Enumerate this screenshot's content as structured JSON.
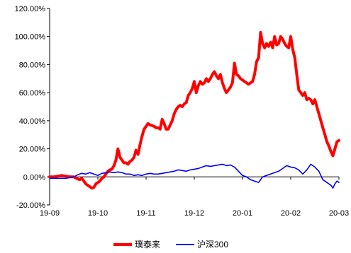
{
  "chart_data": {
    "type": "line",
    "title": "",
    "xlabel": "",
    "ylabel": "",
    "ylim": [
      -20,
      120
    ],
    "y_ticks": [
      -20,
      0,
      20,
      40,
      60,
      80,
      100,
      120
    ],
    "y_tick_labels": [
      "-20.00%",
      "0.00%",
      "20.00%",
      "40.00%",
      "60.00%",
      "80.00%",
      "100.00%",
      "120.00%"
    ],
    "x_ticks": [
      "19-09",
      "19-10",
      "19-11",
      "19-12",
      "20-01",
      "20-02",
      "20-03"
    ],
    "grid": false,
    "legend_position": "bottom",
    "series": [
      {
        "name": "璞泰来",
        "color": "#ff0000",
        "points": [
          [
            0,
            0.0
          ],
          [
            2,
            0.0
          ],
          [
            4,
            0.5
          ],
          [
            6,
            1.0
          ],
          [
            8,
            0.5
          ],
          [
            10,
            0.0
          ],
          [
            12,
            0.0
          ],
          [
            14,
            -1.5
          ],
          [
            15,
            -2.0
          ],
          [
            16,
            -1.0
          ],
          [
            17,
            -3.0
          ],
          [
            18,
            -5.0
          ],
          [
            19,
            -6.0
          ],
          [
            20,
            -7.0
          ],
          [
            21,
            -8.0
          ],
          [
            22,
            -7.5
          ],
          [
            23,
            -5.0
          ],
          [
            24,
            -4.0
          ],
          [
            25,
            -3.0
          ],
          [
            26,
            -1.0
          ],
          [
            27,
            0.0
          ],
          [
            28,
            2.0
          ],
          [
            29,
            4.0
          ],
          [
            30,
            5.0
          ],
          [
            31,
            5.5
          ],
          [
            32,
            8.0
          ],
          [
            33,
            12.0
          ],
          [
            34,
            20.0
          ],
          [
            35,
            14.0
          ],
          [
            36,
            12.0
          ],
          [
            37,
            10.0
          ],
          [
            38,
            10.0
          ],
          [
            39,
            9.0
          ],
          [
            40,
            11.0
          ],
          [
            41,
            12.0
          ],
          [
            42,
            14.0
          ],
          [
            43,
            19.0
          ],
          [
            44,
            16.0
          ],
          [
            45,
            23.0
          ],
          [
            46,
            29.0
          ],
          [
            47,
            34.0
          ],
          [
            48,
            36.0
          ],
          [
            49,
            38.0
          ],
          [
            50,
            37.0
          ],
          [
            51,
            36.5
          ],
          [
            52,
            36.0
          ],
          [
            53,
            35.0
          ],
          [
            54,
            35.0
          ],
          [
            55,
            34.0
          ],
          [
            56,
            41.0
          ],
          [
            57,
            38.0
          ],
          [
            58,
            34.0
          ],
          [
            59,
            34.0
          ],
          [
            60,
            37.0
          ],
          [
            61,
            40.0
          ],
          [
            62,
            45.0
          ],
          [
            63,
            48.0
          ],
          [
            64,
            50.0
          ],
          [
            65,
            51.0
          ],
          [
            66,
            50.0
          ],
          [
            67,
            52.0
          ],
          [
            68,
            53.0
          ],
          [
            69,
            58.0
          ],
          [
            70,
            60.0
          ],
          [
            71,
            63.0
          ],
          [
            72,
            68.0
          ],
          [
            73,
            60.0
          ],
          [
            74,
            65.0
          ],
          [
            75,
            68.0
          ],
          [
            76,
            66.0
          ],
          [
            77,
            67.0
          ],
          [
            78,
            70.0
          ],
          [
            79,
            68.0
          ],
          [
            80,
            70.0
          ],
          [
            81,
            73.0
          ],
          [
            82,
            75.0
          ],
          [
            83,
            72.0
          ],
          [
            84,
            70.0
          ],
          [
            85,
            73.0
          ],
          [
            86,
            67.0
          ],
          [
            87,
            63.0
          ],
          [
            88,
            60.0
          ],
          [
            89,
            62.0
          ],
          [
            90,
            64.0
          ],
          [
            91,
            67.0
          ],
          [
            92,
            81.0
          ],
          [
            93,
            73.0
          ],
          [
            94,
            72.0
          ],
          [
            95,
            70.0
          ],
          [
            96,
            69.0
          ],
          [
            97,
            68.0
          ],
          [
            98,
            67.0
          ],
          [
            99,
            66.0
          ],
          [
            100,
            67.0
          ],
          [
            101,
            68.0
          ],
          [
            102,
            73.0
          ],
          [
            103,
            82.0
          ],
          [
            104,
            85.0
          ],
          [
            105,
            103.0
          ],
          [
            106,
            95.0
          ],
          [
            107,
            92.0
          ],
          [
            108,
            95.0
          ],
          [
            109,
            93.0
          ],
          [
            110,
            96.0
          ],
          [
            111,
            92.0
          ],
          [
            112,
            100.0
          ],
          [
            113,
            94.0
          ],
          [
            114,
            95.0
          ],
          [
            115,
            100.0
          ],
          [
            116,
            98.0
          ],
          [
            117,
            95.0
          ],
          [
            118,
            93.0
          ],
          [
            119,
            92.0
          ],
          [
            120,
            100.0
          ],
          [
            121,
            91.0
          ],
          [
            122,
            85.0
          ],
          [
            123,
            73.0
          ],
          [
            124,
            62.0
          ],
          [
            125,
            60.0
          ],
          [
            126,
            58.0
          ],
          [
            127,
            60.0
          ],
          [
            128,
            55.0
          ],
          [
            129,
            56.0
          ],
          [
            130,
            55.0
          ],
          [
            131,
            52.0
          ],
          [
            132,
            55.0
          ],
          [
            133,
            50.0
          ],
          [
            134,
            45.0
          ],
          [
            135,
            40.0
          ],
          [
            136,
            35.0
          ],
          [
            137,
            30.0
          ],
          [
            138,
            25.0
          ],
          [
            139,
            22.0
          ],
          [
            140,
            18.0
          ],
          [
            141,
            15.0
          ],
          [
            142,
            20.0
          ],
          [
            143,
            25.0
          ],
          [
            144,
            26.0
          ]
        ]
      },
      {
        "name": "沪深300",
        "color": "#0000ff",
        "points": [
          [
            0,
            -1.0
          ],
          [
            4,
            -1.0
          ],
          [
            8,
            -1.0
          ],
          [
            12,
            0.0
          ],
          [
            14,
            1.5
          ],
          [
            16,
            2.5
          ],
          [
            18,
            2.0
          ],
          [
            20,
            3.0
          ],
          [
            22,
            2.0
          ],
          [
            24,
            1.0
          ],
          [
            26,
            2.5
          ],
          [
            28,
            3.0
          ],
          [
            30,
            3.5
          ],
          [
            32,
            3.0
          ],
          [
            34,
            3.5
          ],
          [
            36,
            3.0
          ],
          [
            38,
            2.0
          ],
          [
            40,
            2.0
          ],
          [
            42,
            1.0
          ],
          [
            44,
            1.5
          ],
          [
            46,
            1.0
          ],
          [
            48,
            2.0
          ],
          [
            50,
            2.5
          ],
          [
            52,
            2.0
          ],
          [
            54,
            2.0
          ],
          [
            56,
            2.5
          ],
          [
            58,
            3.0
          ],
          [
            60,
            3.5
          ],
          [
            62,
            4.0
          ],
          [
            64,
            5.0
          ],
          [
            66,
            4.5
          ],
          [
            68,
            4.0
          ],
          [
            70,
            5.0
          ],
          [
            72,
            5.5
          ],
          [
            74,
            6.0
          ],
          [
            76,
            7.0
          ],
          [
            78,
            8.0
          ],
          [
            80,
            7.5
          ],
          [
            82,
            8.0
          ],
          [
            84,
            8.5
          ],
          [
            86,
            9.0
          ],
          [
            88,
            8.0
          ],
          [
            90,
            8.5
          ],
          [
            92,
            7.0
          ],
          [
            94,
            4.0
          ],
          [
            96,
            1.0
          ],
          [
            98,
            0.0
          ],
          [
            100,
            -2.0
          ],
          [
            102,
            -3.0
          ],
          [
            104,
            -4.0
          ],
          [
            106,
            0.0
          ],
          [
            108,
            1.0
          ],
          [
            110,
            2.0
          ],
          [
            112,
            3.0
          ],
          [
            114,
            4.0
          ],
          [
            116,
            6.0
          ],
          [
            118,
            8.0
          ],
          [
            120,
            7.0
          ],
          [
            122,
            6.5
          ],
          [
            124,
            5.0
          ],
          [
            126,
            2.0
          ],
          [
            128,
            5.0
          ],
          [
            130,
            9.0
          ],
          [
            132,
            7.0
          ],
          [
            134,
            4.0
          ],
          [
            136,
            -2.0
          ],
          [
            138,
            -4.0
          ],
          [
            140,
            -6.0
          ],
          [
            141,
            -8.0
          ],
          [
            142,
            -5.0
          ],
          [
            143,
            -3.0
          ],
          [
            144,
            -4.0
          ]
        ]
      }
    ],
    "x_range": [
      0,
      144
    ],
    "x_tick_positions": [
      0,
      24,
      48,
      72,
      96,
      120,
      144
    ]
  }
}
